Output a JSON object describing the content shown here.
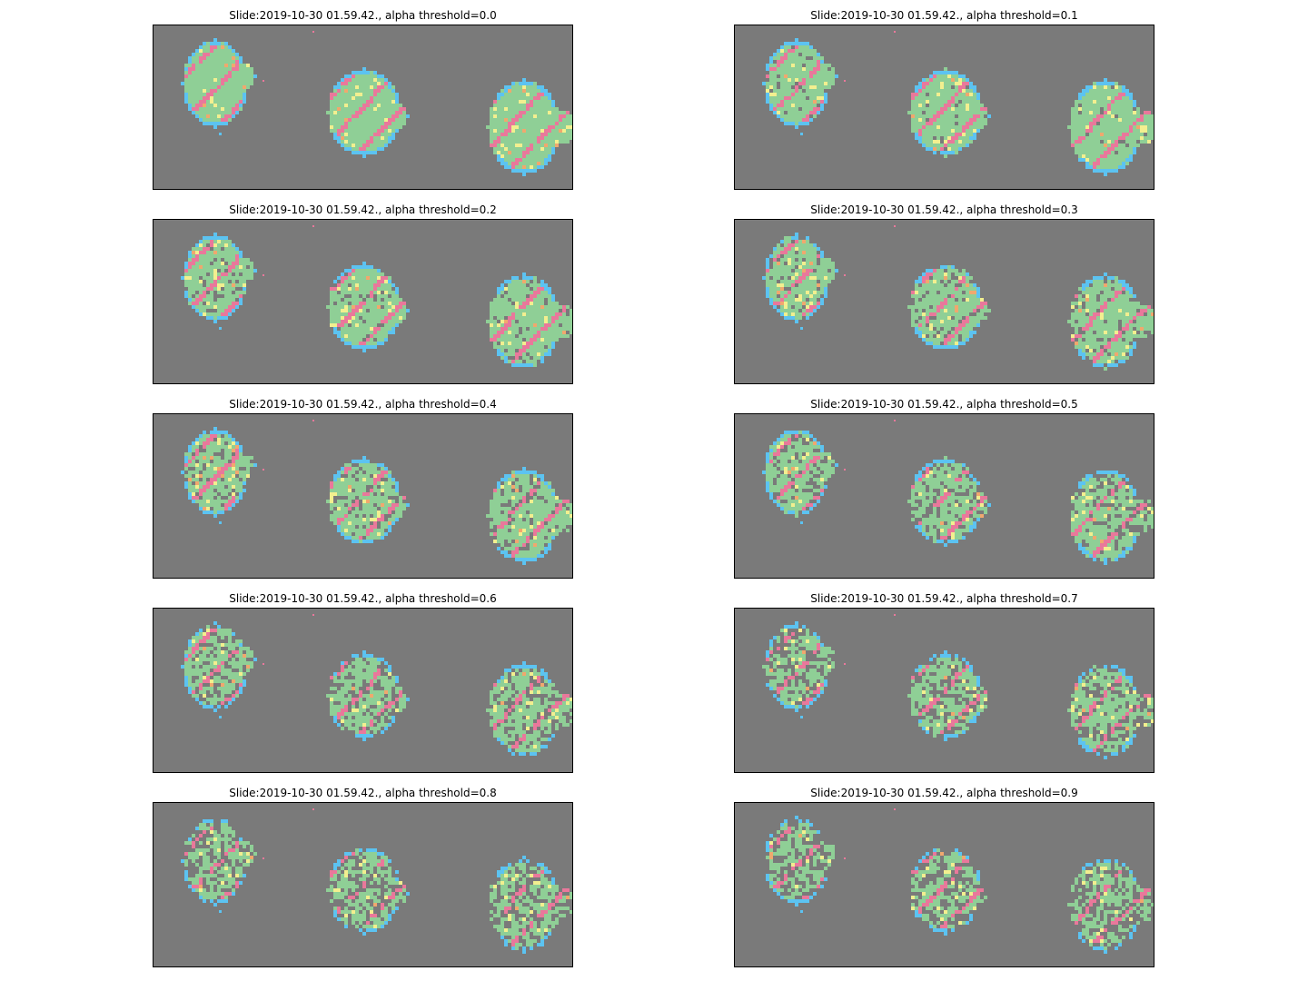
{
  "figure": {
    "panels": [
      {
        "title": "Slide:2019-10-30 01.59.42., alpha threshold=0.0",
        "threshold": 0.0
      },
      {
        "title": "Slide:2019-10-30 01.59.42., alpha threshold=0.1",
        "threshold": 0.1
      },
      {
        "title": "Slide:2019-10-30 01.59.42., alpha threshold=0.2",
        "threshold": 0.2
      },
      {
        "title": "Slide:2019-10-30 01.59.42., alpha threshold=0.3",
        "threshold": 0.3
      },
      {
        "title": "Slide:2019-10-30 01.59.42., alpha threshold=0.4",
        "threshold": 0.4
      },
      {
        "title": "Slide:2019-10-30 01.59.42., alpha threshold=0.5",
        "threshold": 0.5
      },
      {
        "title": "Slide:2019-10-30 01.59.42., alpha threshold=0.6",
        "threshold": 0.6
      },
      {
        "title": "Slide:2019-10-30 01.59.42., alpha threshold=0.7",
        "threshold": 0.7
      },
      {
        "title": "Slide:2019-10-30 01.59.42., alpha threshold=0.8",
        "threshold": 0.8
      },
      {
        "title": "Slide:2019-10-30 01.59.42., alpha threshold=0.9",
        "threshold": 0.9
      }
    ],
    "colors": {
      "background": "#7a7a7a",
      "green": "#8fcf96",
      "pink": "#e9789b",
      "yellow": "#f2ef8f",
      "blue": "#5cc3f1",
      "orange": "#f0a86e"
    }
  }
}
